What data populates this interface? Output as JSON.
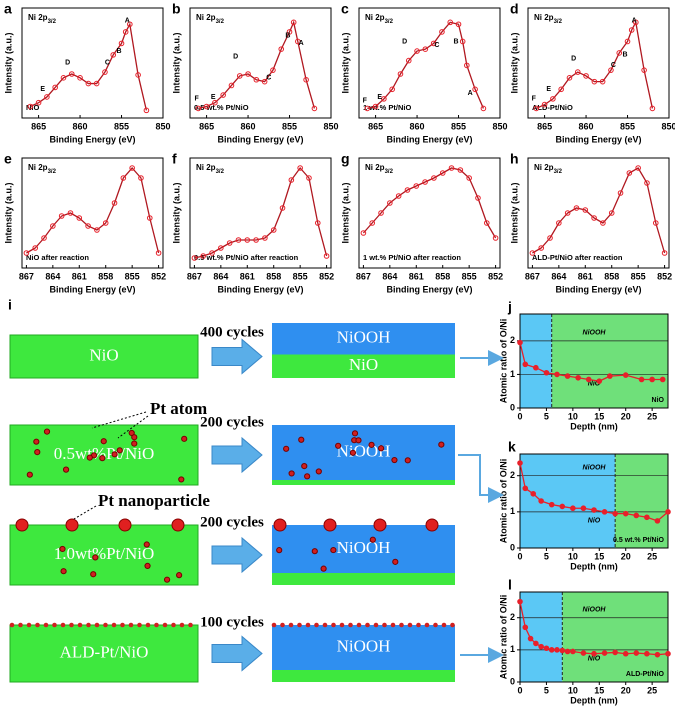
{
  "chart_data": [
    {
      "type": "line",
      "panel_label": "a",
      "label": "Ni 2p",
      "label_sub": "3/2",
      "sample": "NiO",
      "xlabel": "Binding Energy (eV)",
      "ylabel": "Intensity (a.u.)",
      "xlim": [
        867,
        850
      ],
      "xticks": [
        865,
        860,
        855,
        850
      ],
      "ylim": [
        0,
        1.15
      ],
      "x": [
        866,
        865,
        864,
        863,
        862,
        861,
        860,
        859,
        858,
        857,
        856,
        855,
        854.5,
        854,
        853,
        852
      ],
      "series": [
        {
          "color": "#e8202a",
          "values": [
            0.12,
            0.16,
            0.22,
            0.32,
            0.42,
            0.46,
            0.42,
            0.36,
            0.36,
            0.48,
            0.66,
            0.78,
            0.9,
            0.98,
            0.45,
            0.08
          ]
        }
      ],
      "peak_labels": [
        {
          "text": "A",
          "x": 854.3,
          "y": 1.02
        },
        {
          "text": "B",
          "x": 855.3,
          "y": 0.7
        },
        {
          "text": "C",
          "x": 856.7,
          "y": 0.58
        },
        {
          "text": "D",
          "x": 861.5,
          "y": 0.58
        },
        {
          "text": "E",
          "x": 864.5,
          "y": 0.3
        }
      ]
    },
    {
      "type": "line",
      "panel_label": "b",
      "label": "Ni 2p",
      "label_sub": "3/2",
      "sample": "0.5 wt.% Pt/NiO",
      "xlabel": "Binding Energy (eV)",
      "ylabel": "Intensity (a.u.)",
      "xlim": [
        867,
        850
      ],
      "xticks": [
        865,
        860,
        855,
        850
      ],
      "ylim": [
        0,
        1.15
      ],
      "x": [
        866,
        865,
        864,
        863,
        862,
        861,
        860,
        859,
        858,
        857,
        856,
        855,
        854.5,
        854,
        853,
        852
      ],
      "series": [
        {
          "color": "#e8202a",
          "values": [
            0.1,
            0.12,
            0.16,
            0.24,
            0.34,
            0.44,
            0.46,
            0.4,
            0.38,
            0.5,
            0.72,
            0.9,
            1.0,
            0.8,
            0.4,
            0.1
          ]
        }
      ],
      "peak_labels": [
        {
          "text": "A",
          "x": 853.6,
          "y": 0.78
        },
        {
          "text": "B",
          "x": 855.2,
          "y": 0.86
        },
        {
          "text": "C",
          "x": 857.5,
          "y": 0.42
        },
        {
          "text": "D",
          "x": 861.5,
          "y": 0.64
        },
        {
          "text": "E",
          "x": 864.2,
          "y": 0.22
        },
        {
          "text": "F",
          "x": 866.2,
          "y": 0.2
        }
      ]
    },
    {
      "type": "line",
      "panel_label": "c",
      "label": "Ni 2p",
      "label_sub": "3/2",
      "sample": "1 wt.% Pt/NiO",
      "xlabel": "Binding Energy (eV)",
      "ylabel": "Intensity (a.u.)",
      "xlim": [
        867,
        850
      ],
      "xticks": [
        865,
        860,
        855,
        850
      ],
      "ylim": [
        0,
        1.15
      ],
      "x": [
        866,
        865,
        864,
        863,
        862,
        861,
        860,
        859,
        858,
        857,
        856,
        855,
        854.5,
        854,
        853,
        852
      ],
      "series": [
        {
          "color": "#e8202a",
          "values": [
            0.1,
            0.12,
            0.2,
            0.3,
            0.46,
            0.6,
            0.7,
            0.72,
            0.78,
            0.9,
            1.0,
            0.98,
            0.8,
            0.55,
            0.3,
            0.1
          ]
        }
      ],
      "peak_labels": [
        {
          "text": "A",
          "x": 853.6,
          "y": 0.26
        },
        {
          "text": "B",
          "x": 855.3,
          "y": 0.8
        },
        {
          "text": "C",
          "x": 857.6,
          "y": 0.76
        },
        {
          "text": "D",
          "x": 861.5,
          "y": 0.8
        },
        {
          "text": "E",
          "x": 864.5,
          "y": 0.22
        },
        {
          "text": "F",
          "x": 866.3,
          "y": 0.18
        }
      ]
    },
    {
      "type": "line",
      "panel_label": "d",
      "label": "Ni 2p",
      "label_sub": "3/2",
      "sample": "ALD-Pt/NiO",
      "xlabel": "Binding Energy (eV)",
      "ylabel": "Intensity (a.u.)",
      "xlim": [
        867,
        850
      ],
      "xticks": [
        865,
        860,
        855,
        850
      ],
      "ylim": [
        0,
        1.15
      ],
      "x": [
        866,
        865,
        864,
        863,
        862,
        861,
        860,
        859,
        858,
        857,
        856,
        855,
        854.5,
        854,
        853,
        852
      ],
      "series": [
        {
          "color": "#e8202a",
          "values": [
            0.1,
            0.14,
            0.2,
            0.3,
            0.42,
            0.48,
            0.44,
            0.38,
            0.38,
            0.5,
            0.68,
            0.8,
            0.92,
            1.0,
            0.5,
            0.1
          ]
        }
      ],
      "peak_labels": [
        {
          "text": "A",
          "x": 854.2,
          "y": 1.02
        },
        {
          "text": "B",
          "x": 855.3,
          "y": 0.66
        },
        {
          "text": "C",
          "x": 856.7,
          "y": 0.55
        },
        {
          "text": "D",
          "x": 861.5,
          "y": 0.62
        },
        {
          "text": "E",
          "x": 864.5,
          "y": 0.3
        },
        {
          "text": "F",
          "x": 866.3,
          "y": 0.2
        }
      ]
    },
    {
      "type": "line",
      "panel_label": "e",
      "label": "Ni 2p",
      "label_sub": "3/2",
      "sample": "NiO after reaction",
      "xlabel": "Binding Energy (eV)",
      "ylabel": "Intensity (a.u.)",
      "xlim": [
        867.5,
        851.5
      ],
      "xticks": [
        867,
        864,
        861,
        858,
        855,
        852
      ],
      "ylim": [
        0,
        1.1
      ],
      "x": [
        867,
        866,
        865,
        864,
        863,
        862,
        861,
        860,
        859,
        858,
        857,
        856,
        855,
        854,
        853,
        852
      ],
      "series": [
        {
          "color": "#e8202a",
          "values": [
            0.15,
            0.2,
            0.3,
            0.42,
            0.52,
            0.55,
            0.5,
            0.42,
            0.38,
            0.45,
            0.65,
            0.9,
            1.0,
            0.9,
            0.5,
            0.15
          ]
        }
      ]
    },
    {
      "type": "line",
      "panel_label": "f",
      "label": "Ni 2p",
      "label_sub": "3/2",
      "sample": "0.5 wt.% Pt/NiO after reaction",
      "xlabel": "Binding Energy (eV)",
      "ylabel": "Intensity (a.u.)",
      "xlim": [
        867.5,
        851.5
      ],
      "xticks": [
        867,
        864,
        861,
        858,
        855,
        852
      ],
      "ylim": [
        0,
        1.1
      ],
      "x": [
        867,
        866,
        865,
        864,
        863,
        862,
        861,
        860,
        859,
        858,
        857,
        856,
        855,
        854,
        853,
        852
      ],
      "series": [
        {
          "color": "#e8202a",
          "values": [
            0.1,
            0.12,
            0.15,
            0.2,
            0.25,
            0.28,
            0.28,
            0.28,
            0.3,
            0.38,
            0.6,
            0.88,
            1.0,
            0.9,
            0.45,
            0.12
          ]
        }
      ]
    },
    {
      "type": "line",
      "panel_label": "g",
      "label": "Ni 2p",
      "label_sub": "3/2",
      "sample": "1 wt.% Pt/NiO after reaction",
      "xlabel": "Binding Energy (eV)",
      "ylabel": "Intensity (a.u.)",
      "xlim": [
        867.5,
        851.5
      ],
      "xticks": [
        867,
        864,
        861,
        858,
        855,
        852
      ],
      "ylim": [
        0,
        1.1
      ],
      "x": [
        867,
        866,
        865,
        864,
        863,
        862,
        861,
        860,
        859,
        858,
        857,
        856,
        855,
        854,
        853,
        852
      ],
      "series": [
        {
          "color": "#e8202a",
          "values": [
            0.35,
            0.45,
            0.55,
            0.65,
            0.72,
            0.78,
            0.82,
            0.86,
            0.9,
            0.95,
            1.0,
            0.98,
            0.9,
            0.7,
            0.45,
            0.3
          ]
        }
      ]
    },
    {
      "type": "line",
      "panel_label": "h",
      "label": "Ni 2p",
      "label_sub": "3/2",
      "sample": "ALD-Pt/NiO after reaction",
      "xlabel": "Binding Energy (eV)",
      "ylabel": "Intensity (a.u.)",
      "xlim": [
        867.5,
        851.5
      ],
      "xticks": [
        867,
        864,
        861,
        858,
        855,
        852
      ],
      "ylim": [
        0,
        1.1
      ],
      "x": [
        867,
        866,
        865,
        864,
        863,
        862,
        861,
        860,
        859,
        858,
        857,
        856,
        855,
        854,
        853,
        852
      ],
      "series": [
        {
          "color": "#e8202a",
          "values": [
            0.15,
            0.2,
            0.3,
            0.45,
            0.55,
            0.6,
            0.58,
            0.5,
            0.45,
            0.55,
            0.75,
            0.95,
            1.0,
            0.85,
            0.45,
            0.15
          ]
        }
      ]
    },
    {
      "type": "depth",
      "panel_label": "j",
      "xlabel": "Depth (nm)",
      "ylabel": "Atomic ratio of O/Ni",
      "xlim": [
        0,
        28
      ],
      "xticks": [
        0,
        5,
        10,
        15,
        20,
        25
      ],
      "ylim": [
        0,
        2.8
      ],
      "yticks": [
        0,
        1,
        2
      ],
      "boundary": 6,
      "upper_label": "NiOOH",
      "lower_label": "NiO",
      "sample": "NiO",
      "upper_color": "#5bc8f5",
      "lower_color": "#6fe07a",
      "x": [
        0,
        1,
        3,
        5,
        7,
        9,
        11,
        13,
        15,
        17,
        20,
        23,
        25,
        27
      ],
      "series": [
        {
          "color": "#e8202a",
          "values": [
            1.95,
            1.3,
            1.2,
            1.05,
            1.0,
            0.95,
            0.9,
            0.85,
            0.8,
            0.95,
            0.98,
            0.85,
            0.85,
            0.85
          ]
        }
      ]
    },
    {
      "type": "depth",
      "panel_label": "k",
      "xlabel": "Depth (nm)",
      "ylabel": "Atomic ratio of O/Ni",
      "xlim": [
        0,
        28
      ],
      "xticks": [
        0,
        5,
        10,
        15,
        20,
        25
      ],
      "ylim": [
        0,
        2.6
      ],
      "yticks": [
        0,
        1,
        2
      ],
      "boundary": 18,
      "upper_label": "NiOOH",
      "lower_label": "NiO",
      "sample": "0.5 wt.% Pt/NiO",
      "upper_color": "#5bc8f5",
      "lower_color": "#6fe07a",
      "x": [
        0,
        1,
        2.5,
        4,
        6,
        8,
        10,
        12,
        14,
        16,
        18,
        20,
        22,
        24,
        26,
        28
      ],
      "series": [
        {
          "color": "#e8202a",
          "values": [
            2.35,
            1.65,
            1.5,
            1.3,
            1.2,
            1.15,
            1.1,
            1.1,
            1.05,
            1.0,
            0.95,
            0.95,
            0.9,
            0.85,
            0.75,
            1.0
          ]
        }
      ]
    },
    {
      "type": "depth",
      "panel_label": "l",
      "xlabel": "Depth (nm)",
      "ylabel": "Atomic ratio of O/Ni",
      "xlim": [
        0,
        28
      ],
      "xticks": [
        0,
        5,
        10,
        15,
        20,
        25
      ],
      "ylim": [
        0,
        2.8
      ],
      "yticks": [
        0,
        1,
        2
      ],
      "boundary": 8,
      "upper_label": "NiOOH",
      "lower_label": "NiO",
      "sample": "ALD-Pt/NiO",
      "upper_color": "#5bc8f5",
      "lower_color": "#6fe07a",
      "x": [
        0,
        1,
        2,
        3,
        4,
        5,
        6,
        7,
        8,
        9,
        10,
        12,
        14,
        16,
        18,
        20,
        22,
        24,
        26,
        28
      ],
      "series": [
        {
          "color": "#e8202a",
          "values": [
            2.5,
            1.7,
            1.35,
            1.2,
            1.1,
            1.05,
            1.0,
            1.0,
            0.98,
            0.95,
            0.95,
            0.9,
            0.88,
            0.9,
            0.92,
            0.88,
            0.9,
            0.88,
            0.85,
            0.88
          ]
        }
      ]
    }
  ],
  "diagram": {
    "panel_label": "i",
    "pt_atom": "Pt atom",
    "pt_nanoparticle": "Pt nanoparticle",
    "rows": [
      {
        "left": "NiO",
        "cycles": "400 cycles",
        "right_top": "NiOOH",
        "right_bottom": "NiO"
      },
      {
        "left": "0.5wt%Pt/NiO",
        "cycles": "200 cycles",
        "right_top": "NiOOH"
      },
      {
        "left": "1.0wt%Pt/NiO",
        "cycles": "200 cycles",
        "right_top": "NiOOH"
      },
      {
        "left": "ALD-Pt/NiO",
        "cycles": "100 cycles",
        "right_top": "NiOOH"
      }
    ]
  }
}
